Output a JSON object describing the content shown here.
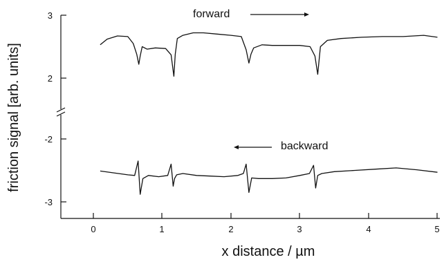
{
  "chart_data": {
    "type": "line",
    "xlabel": "x distance / µm",
    "ylabel": "friction signal [arb. units]",
    "xlim": [
      -0.5,
      5
    ],
    "x_ticks": [
      "0",
      "1",
      "2",
      "3",
      "4",
      "5"
    ],
    "y_axis_break": true,
    "y_ticks_upper": [
      "3",
      "2"
    ],
    "y_ticks_lower": [
      "-2",
      "-3"
    ],
    "grid": false,
    "annotations": [
      {
        "text": "forward",
        "arrow": "right"
      },
      {
        "text": "backward",
        "arrow": "left"
      }
    ],
    "series": [
      {
        "x": [
          0.1,
          0.2,
          0.35,
          0.5,
          0.58,
          0.63,
          0.66,
          0.68,
          0.71,
          0.78,
          0.9,
          1.05,
          1.13,
          1.17,
          1.19,
          1.22,
          1.3,
          1.45,
          1.6,
          1.8,
          2.0,
          2.15,
          2.22,
          2.26,
          2.29,
          2.33,
          2.45,
          2.6,
          2.8,
          3.0,
          3.15,
          3.22,
          3.26,
          3.3,
          3.4,
          3.6,
          3.9,
          4.2,
          4.5,
          4.8,
          5.0
        ],
        "values": [
          2.53,
          2.62,
          2.67,
          2.66,
          2.55,
          2.38,
          2.22,
          2.35,
          2.5,
          2.46,
          2.48,
          2.47,
          2.37,
          2.03,
          2.38,
          2.63,
          2.68,
          2.72,
          2.72,
          2.7,
          2.68,
          2.66,
          2.45,
          2.24,
          2.38,
          2.48,
          2.53,
          2.52,
          2.52,
          2.52,
          2.5,
          2.35,
          2.06,
          2.5,
          2.6,
          2.63,
          2.65,
          2.66,
          2.66,
          2.68,
          2.65
        ]
      },
      {
        "x": [
          0.1,
          0.3,
          0.5,
          0.6,
          0.65,
          0.68,
          0.72,
          0.8,
          0.95,
          1.08,
          1.13,
          1.16,
          1.18,
          1.21,
          1.3,
          1.5,
          1.7,
          1.9,
          2.1,
          2.18,
          2.22,
          2.26,
          2.3,
          2.4,
          2.6,
          2.8,
          3.0,
          3.14,
          3.2,
          3.23,
          3.26,
          3.32,
          3.5,
          3.8,
          4.1,
          4.4,
          4.7,
          5.0
        ],
        "values": [
          -2.51,
          -2.54,
          -2.57,
          -2.58,
          -2.35,
          -2.88,
          -2.63,
          -2.58,
          -2.6,
          -2.58,
          -2.4,
          -2.75,
          -2.63,
          -2.57,
          -2.55,
          -2.58,
          -2.59,
          -2.6,
          -2.58,
          -2.55,
          -2.4,
          -2.85,
          -2.62,
          -2.63,
          -2.63,
          -2.62,
          -2.58,
          -2.55,
          -2.42,
          -2.78,
          -2.58,
          -2.55,
          -2.52,
          -2.5,
          -2.48,
          -2.46,
          -2.49,
          -2.53
        ]
      }
    ]
  }
}
